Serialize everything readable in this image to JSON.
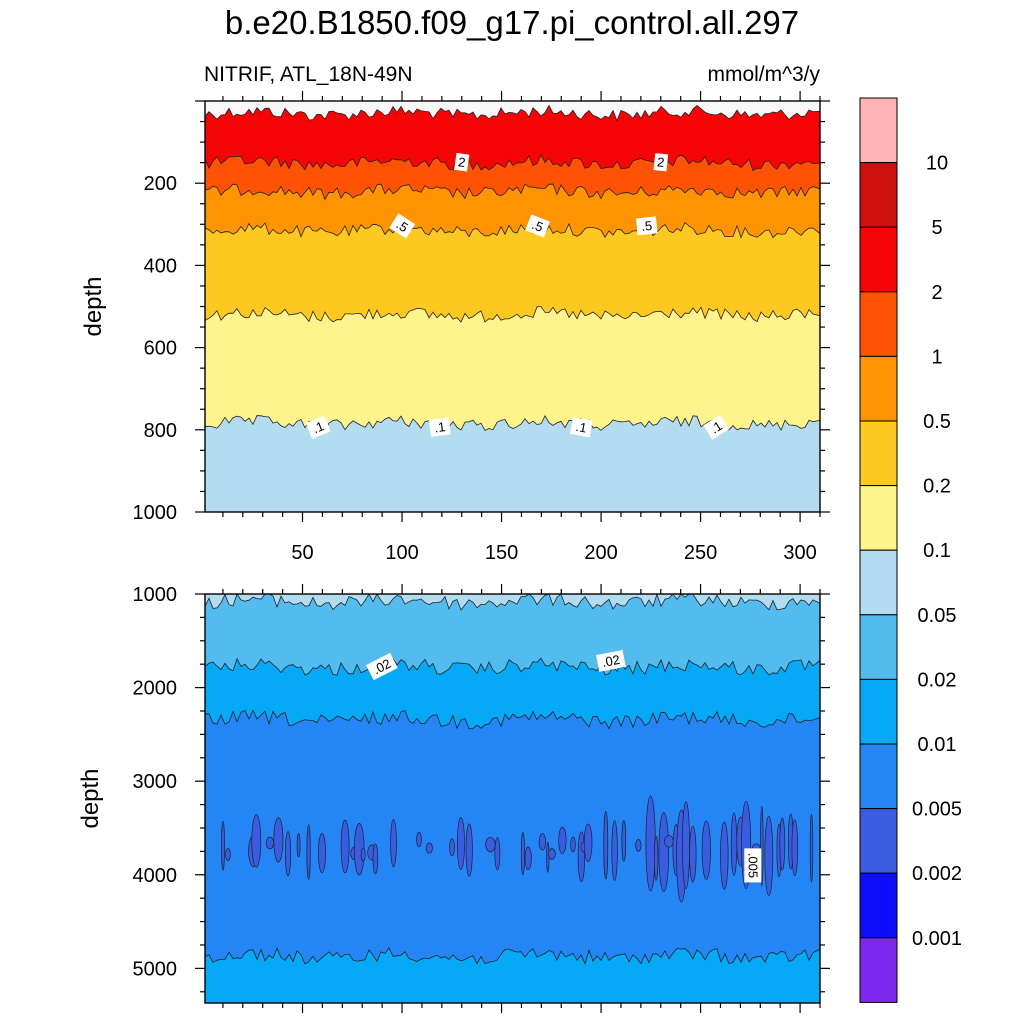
{
  "title": "b.e20.B1850.f09_g17.pi_control.all.297",
  "subtitle_left": "NITRIF, ATL_18N-49N",
  "subtitle_right": "mmol/m^3/y",
  "chart_data": [
    {
      "type": "contour",
      "panel": "top",
      "xlabel": "",
      "ylabel": "depth",
      "xlim": [
        1,
        310
      ],
      "ylim": [
        1000,
        0
      ],
      "xticks": [
        50,
        100,
        150,
        200,
        250,
        300
      ],
      "yticks": [
        200,
        400,
        600,
        800,
        1000
      ],
      "bands": [
        {
          "from": 0,
          "to": 30,
          "level": "<0.05",
          "color": "#f8f8f8"
        },
        {
          "from": 30,
          "to": 150,
          "level": "2-5",
          "color": "#f50505"
        },
        {
          "from": 150,
          "to": 220,
          "level": "1-2",
          "color": "#fe5204"
        },
        {
          "from": 220,
          "to": 315,
          "level": "0.5-1",
          "color": "#fe9401"
        },
        {
          "from": 315,
          "to": 520,
          "level": "0.2-0.5",
          "color": "#fdc81f"
        },
        {
          "from": 520,
          "to": 785,
          "level": "0.1-0.2",
          "color": "#fff38c"
        },
        {
          "from": 785,
          "to": 1000,
          "level": "0.05-0.1",
          "color": "#b4dcf1"
        }
      ],
      "contour_labels": [
        {
          "text": "2",
          "x": 130,
          "y": 150
        },
        {
          "text": "2",
          "x": 230,
          "y": 150
        },
        {
          "text": ".5",
          "x": 100,
          "y": 305
        },
        {
          "text": ".5",
          "x": 168,
          "y": 305
        },
        {
          "text": ".5",
          "x": 223,
          "y": 305
        },
        {
          "text": ".1",
          "x": 58,
          "y": 795
        },
        {
          "text": ".1",
          "x": 119,
          "y": 795
        },
        {
          "text": ".1",
          "x": 190,
          "y": 795
        },
        {
          "text": ".1",
          "x": 258,
          "y": 795
        }
      ]
    },
    {
      "type": "contour",
      "panel": "bottom",
      "xlabel": "",
      "ylabel": "depth",
      "xlim": [
        1,
        310
      ],
      "ylim": [
        5370,
        1000
      ],
      "xticks": [
        50,
        100,
        150,
        200,
        250,
        300
      ],
      "yticks": [
        1000,
        2000,
        3000,
        4000,
        5000
      ],
      "bands": [
        {
          "from": 1000,
          "to": 1080,
          "level": "0.05-0.1",
          "color": "#b4dcf1"
        },
        {
          "from": 1080,
          "to": 1780,
          "level": "0.02-0.05",
          "color": "#52bcef"
        },
        {
          "from": 1780,
          "to": 2340,
          "level": "0.01-0.02",
          "color": "#06a9f6"
        },
        {
          "from": 2340,
          "to": 4870,
          "level": "0.005-0.01",
          "color": "#2485f4"
        },
        {
          "from": 4870,
          "to": 5370,
          "level": "0.01-0.02",
          "color": "#06a9f6"
        }
      ],
      "contour_labels": [
        {
          "text": ".02",
          "x": 90,
          "y": 1780
        },
        {
          "text": ".02",
          "x": 205,
          "y": 1720
        },
        {
          "text": ".005",
          "x": 276,
          "y": 3900
        }
      ]
    }
  ],
  "colorbar": {
    "labels": [
      "10",
      "5",
      "2",
      "1",
      "0.5",
      "0.2",
      "0.1",
      "0.05",
      "0.02",
      "0.01",
      "0.005",
      "0.002",
      "0.001"
    ],
    "colors": [
      "#feb4b4",
      "#d00f0f",
      "#f50505",
      "#fe5204",
      "#fe9401",
      "#fdc81f",
      "#fff38c",
      "#b4dcf1",
      "#52bcef",
      "#06a9f6",
      "#2485f4",
      "#3a5ce2",
      "#0d0dfb",
      "#7e28ef"
    ]
  }
}
